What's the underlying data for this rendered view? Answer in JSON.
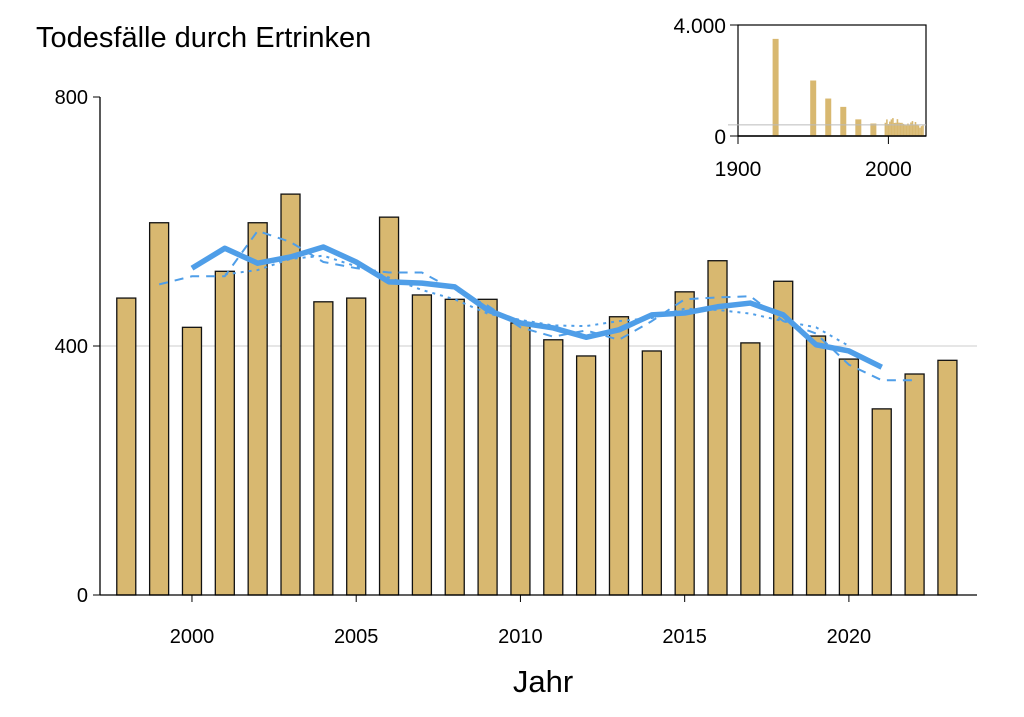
{
  "chart_data": [
    {
      "type": "bar",
      "title": "Todesfälle durch Ertrinken",
      "xlabel": "Jahr",
      "ylabel": "",
      "ylim": [
        0,
        800
      ],
      "xlim": [
        1997.2,
        2023.9
      ],
      "yticks": [
        0,
        400,
        800
      ],
      "ytick_labels": [
        "0",
        "400",
        "800"
      ],
      "xticks": [
        2000,
        2005,
        2010,
        2015,
        2020
      ],
      "xtick_labels": [
        "2000",
        "2005",
        "2010",
        "2015",
        "2020"
      ],
      "grid": "horizontal line at 400",
      "x": [
        1998,
        1999,
        2000,
        2001,
        2002,
        2003,
        2004,
        2005,
        2006,
        2007,
        2008,
        2009,
        2010,
        2011,
        2012,
        2013,
        2014,
        2015,
        2016,
        2017,
        2018,
        2019,
        2020,
        2021,
        2022,
        2023
      ],
      "values": [
        477,
        598,
        430,
        520,
        598,
        644,
        471,
        477,
        607,
        482,
        475,
        475,
        437,
        410,
        384,
        447,
        392,
        487,
        537,
        405,
        504,
        416,
        379,
        299,
        355,
        377
      ],
      "bar_color": "#d8b870",
      "series": [
        {
          "name": "moving-average-solid",
          "style": "solid",
          "color": "#4f9ee8",
          "x": [
            2000,
            2001,
            2002,
            2003,
            2004,
            2005,
            2006,
            2007,
            2008,
            2009,
            2010,
            2011,
            2012,
            2013,
            2014,
            2015,
            2016,
            2017,
            2018,
            2019,
            2020,
            2021
          ],
          "values": [
            525,
            557,
            533,
            543,
            559,
            535,
            503,
            501,
            495,
            458,
            437,
            429,
            414,
            426,
            450,
            453,
            463,
            469,
            450,
            402,
            392,
            366
          ]
        },
        {
          "name": "moving-average-dashed",
          "style": "dashed",
          "color": "#4f9ee8",
          "x": [
            1999,
            2000,
            2001,
            2002,
            2003,
            2004,
            2005,
            2006,
            2007,
            2008,
            2009,
            2010,
            2011,
            2012,
            2013,
            2014,
            2015,
            2016,
            2017,
            2018,
            2019,
            2020,
            2021,
            2022
          ],
          "values": [
            499,
            512,
            512,
            585,
            567,
            535,
            525,
            518,
            518,
            490,
            465,
            430,
            415,
            425,
            410,
            440,
            475,
            478,
            480,
            440,
            420,
            370,
            345,
            345
          ]
        },
        {
          "name": "moving-average-dotted",
          "style": "dotted",
          "color": "#4f9ee8",
          "x": [
            2001,
            2002,
            2003,
            2004,
            2005,
            2006,
            2007,
            2008,
            2009,
            2010,
            2011,
            2012,
            2013,
            2014,
            2015,
            2016,
            2017,
            2018,
            2019,
            2020
          ],
          "values": [
            515,
            522,
            540,
            545,
            528,
            510,
            490,
            475,
            452,
            442,
            433,
            432,
            440,
            445,
            460,
            458,
            452,
            440,
            430,
            400
          ]
        }
      ]
    },
    {
      "type": "bar",
      "title": "",
      "ylim": [
        0,
        4000
      ],
      "xlim": [
        1900,
        2025
      ],
      "yticks": [
        0,
        4000
      ],
      "ytick_labels": [
        "0",
        "4.000"
      ],
      "xticks": [
        1900,
        2000
      ],
      "xtick_labels": [
        "1900",
        "2000"
      ],
      "grid": "horizontal line at 400",
      "x": [
        1925,
        1950,
        1960,
        1970,
        1980,
        1990,
        1998,
        1999,
        2000,
        2001,
        2002,
        2003,
        2004,
        2005,
        2006,
        2007,
        2008,
        2009,
        2010,
        2011,
        2012,
        2013,
        2014,
        2015,
        2016,
        2017,
        2018,
        2019,
        2020,
        2021,
        2022,
        2023
      ],
      "values": [
        3500,
        2000,
        1350,
        1050,
        600,
        450,
        477,
        598,
        430,
        520,
        598,
        644,
        471,
        477,
        607,
        482,
        475,
        475,
        437,
        410,
        384,
        447,
        392,
        487,
        537,
        405,
        504,
        416,
        379,
        299,
        355,
        377
      ]
    }
  ]
}
